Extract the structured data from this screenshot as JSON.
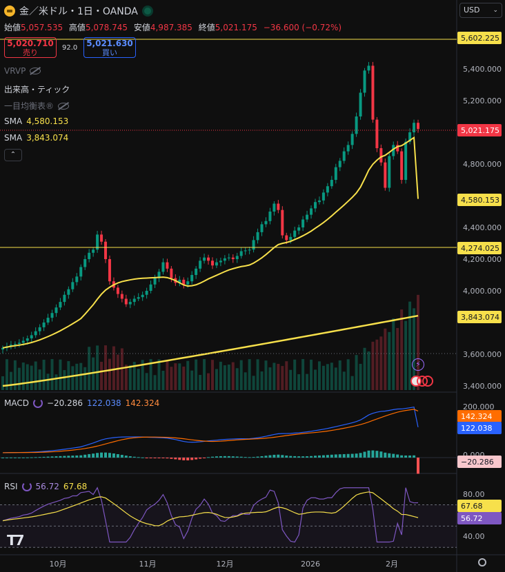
{
  "header": {
    "symbol_title": "金／米ドル・1日・OANDA",
    "ohlc": [
      {
        "label": "始値",
        "value": "5,057.535"
      },
      {
        "label": "高値",
        "value": "5,078.745"
      },
      {
        "label": "安値",
        "value": "4,987.385"
      },
      {
        "label": "終値",
        "value": "5,021.175"
      }
    ],
    "change": "−36.600 (−0.72%)",
    "currency": "USD"
  },
  "trade": {
    "sell_price": "5,020.710",
    "sell_label": "売り",
    "spread": "92.0",
    "buy_price": "5,021.630",
    "buy_label": "買い"
  },
  "legend": {
    "vrvp": "VRVP",
    "volume": "出来高・ティック",
    "ichimoku": "一目均衡表®",
    "sma1_label": "SMA",
    "sma1_value": "4,580.153",
    "sma2_label": "SMA",
    "sma2_value": "3,843.074"
  },
  "macd_legend": {
    "label": "MACD",
    "v1": "−20.286",
    "v2": "122.038",
    "v3": "142.324"
  },
  "rsi_legend": {
    "label": "RSI",
    "v1": "56.72",
    "v2": "67.68"
  },
  "price_axis": [
    "5,400.000",
    "5,200.000",
    "4,800.000",
    "4,400.000",
    "4,200.000",
    "4,000.000",
    "3,600.000",
    "3,400.000"
  ],
  "price_badges": {
    "high_line": "5,602.225",
    "last": "5,021.175",
    "sma1": "4,580.153",
    "hline": "4,274.025",
    "sma2": "3,843.074"
  },
  "macd_axis": [
    "200.000",
    "100.000",
    "0.000"
  ],
  "macd_badges": {
    "signal": "142.324",
    "macd": "122.038",
    "hist": "−20.286"
  },
  "rsi_axis": [
    "80.00",
    "40.00"
  ],
  "rsi_badges": {
    "ma": "67.68",
    "rsi": "56.72"
  },
  "time_axis": [
    "10月",
    "11月",
    "12月",
    "2026",
    "2月"
  ],
  "colors": {
    "up": "#089981",
    "down": "#f23645",
    "sma": "#f7e04b",
    "macd": "#2962ff",
    "signal": "#ff6d00",
    "rsi": "#7e57c2",
    "background": "#0f0f0f"
  },
  "icons": [
    "gold-coin-icon",
    "market-open-icon",
    "eye-off-icon",
    "chevron-up-icon",
    "chevron-down-icon",
    "lightning-icon",
    "us-flag-icon",
    "tradingview-logo",
    "gear-icon"
  ],
  "chart_data": {
    "type": "candlestick",
    "price_scale": {
      "min": 3400,
      "max": 5600
    },
    "closes": [
      3640,
      3650,
      3660,
      3665,
      3672,
      3685,
      3700,
      3720,
      3745,
      3770,
      3800,
      3830,
      3860,
      3895,
      3930,
      3975,
      4010,
      4055,
      4090,
      4150,
      4200,
      4240,
      4260,
      4355,
      4310,
      4200,
      4060,
      4020,
      3980,
      3950,
      3915,
      3930,
      3950,
      3960,
      3975,
      4000,
      4040,
      4080,
      4120,
      4180,
      4140,
      4080,
      4050,
      4070,
      4040,
      4060,
      4100,
      4140,
      4190,
      4210,
      4190,
      4160,
      4180,
      4190,
      4205,
      4210,
      4200,
      4220,
      4250,
      4255,
      4260,
      4320,
      4370,
      4420,
      4440,
      4500,
      4550,
      4510,
      4350,
      4320,
      4340,
      4380,
      4400,
      4450,
      4480,
      4520,
      4560,
      4570,
      4620,
      4660,
      4700,
      4780,
      4820,
      4880,
      4920,
      4990,
      5100,
      5250,
      5390,
      5420,
      5080,
      4900,
      4810,
      4650,
      4850,
      4920,
      4880,
      4700,
      4940,
      5000,
      5060,
      5021
    ],
    "sma1_end": 4580.153,
    "sma2_end": 3843.074,
    "hlines": [
      4274.025,
      5602.225
    ],
    "macd_range": {
      "min": -60,
      "max": 220
    },
    "rsi_range": {
      "min": 30,
      "max": 90
    }
  }
}
